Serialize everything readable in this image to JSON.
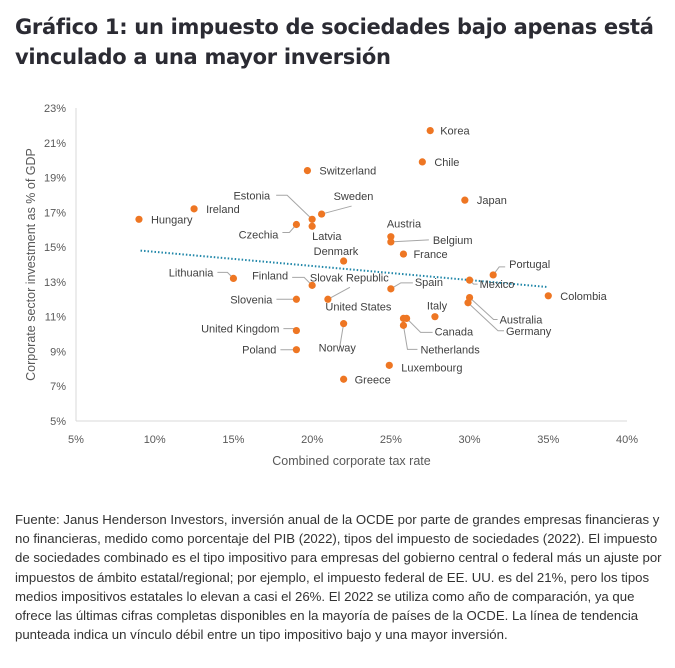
{
  "title": "Gráfico 1: un impuesto de sociedades bajo apenas está vinculado a una mayor inversión",
  "caption": "Fuente: Janus Henderson Investors, inversión anual de la OCDE por parte de grandes empresas financieras y no financieras, medido como porcentaje del PIB (2022), tipos del impuesto de sociedades (2022). El impuesto de sociedades combinado es el tipo impositivo para empresas del gobierno central o federal más un ajuste por impuestos de ámbito estatal/regional; por ejemplo, el impuesto federal de EE. UU. es del 21%, pero los tipos medios impositivos estatales lo elevan a casi el 26%. El 2022 se utiliza como año de comparación, ya que ofrece las últimas cifras completas disponibles en la mayoría de países de la OCDE. La línea de tendencia punteada indica un vínculo débil entre un tipo impositivo bajo y una mayor inversión.",
  "colors": {
    "point": "#EE7623",
    "trend": "#1F86A8",
    "axis": "#D9D9D9",
    "leader": "#A6A6A6"
  },
  "chart_data": {
    "type": "scatter",
    "title": "",
    "xlabel": "Combined corporate tax rate",
    "ylabel": "Corporate sector investment as % of GDP",
    "xlim": [
      5,
      40
    ],
    "ylim": [
      5,
      23
    ],
    "xticks": [
      5,
      10,
      15,
      20,
      25,
      30,
      35,
      40
    ],
    "yticks": [
      5,
      7,
      9,
      11,
      13,
      15,
      17,
      19,
      21,
      23
    ],
    "xtick_labels": [
      "5%",
      "10%",
      "15%",
      "20%",
      "25%",
      "30%",
      "35%",
      "40%"
    ],
    "ytick_labels": [
      "5%",
      "7%",
      "9%",
      "11%",
      "13%",
      "15%",
      "17%",
      "19%",
      "21%",
      "23%"
    ],
    "grid": false,
    "legend": "none",
    "trendline": {
      "style": "dotted",
      "x": [
        9.1,
        35.0
      ],
      "y": [
        14.8,
        12.7
      ]
    },
    "points": [
      {
        "name": "Korea",
        "x": 27.5,
        "y": 21.7
      },
      {
        "name": "Chile",
        "x": 27.0,
        "y": 19.9
      },
      {
        "name": "Switzerland",
        "x": 19.7,
        "y": 19.4
      },
      {
        "name": "Japan",
        "x": 29.7,
        "y": 17.7
      },
      {
        "name": "Ireland",
        "x": 12.5,
        "y": 17.2
      },
      {
        "name": "Hungary",
        "x": 9.0,
        "y": 16.6
      },
      {
        "name": "Sweden",
        "x": 20.6,
        "y": 16.9
      },
      {
        "name": "Estonia",
        "x": 20.0,
        "y": 16.6
      },
      {
        "name": "Czechia",
        "x": 19.0,
        "y": 16.3
      },
      {
        "name": "Latvia",
        "x": 20.0,
        "y": 16.2
      },
      {
        "name": "Austria",
        "x": 25.0,
        "y": 15.6
      },
      {
        "name": "Belgium",
        "x": 25.0,
        "y": 15.3
      },
      {
        "name": "France",
        "x": 25.8,
        "y": 14.6
      },
      {
        "name": "Denmark",
        "x": 22.0,
        "y": 14.2
      },
      {
        "name": "Portugal",
        "x": 31.5,
        "y": 13.4
      },
      {
        "name": "Lithuania",
        "x": 15.0,
        "y": 13.2
      },
      {
        "name": "Mexico",
        "x": 30.0,
        "y": 13.1
      },
      {
        "name": "Finland",
        "x": 20.0,
        "y": 12.8
      },
      {
        "name": "Spain",
        "x": 25.0,
        "y": 12.6
      },
      {
        "name": "Colombia",
        "x": 35.0,
        "y": 12.2
      },
      {
        "name": "Australia",
        "x": 30.0,
        "y": 12.1
      },
      {
        "name": "Slovenia",
        "x": 19.0,
        "y": 12.0
      },
      {
        "name": "Slovak Republic",
        "x": 21.0,
        "y": 12.0
      },
      {
        "name": "Germany",
        "x": 29.9,
        "y": 11.8
      },
      {
        "name": "Italy",
        "x": 27.8,
        "y": 11.0
      },
      {
        "name": "United States",
        "x": 25.8,
        "y": 10.9
      },
      {
        "name": "Canada",
        "x": 26.0,
        "y": 10.9
      },
      {
        "name": "Norway",
        "x": 22.0,
        "y": 10.6
      },
      {
        "name": "Netherlands",
        "x": 25.8,
        "y": 10.5
      },
      {
        "name": "United Kingdom",
        "x": 19.0,
        "y": 10.2
      },
      {
        "name": "Poland",
        "x": 19.0,
        "y": 9.1
      },
      {
        "name": "Luxembourg",
        "x": 24.9,
        "y": 8.2
      },
      {
        "name": "Greece",
        "x": 22.0,
        "y": 7.4
      }
    ]
  }
}
